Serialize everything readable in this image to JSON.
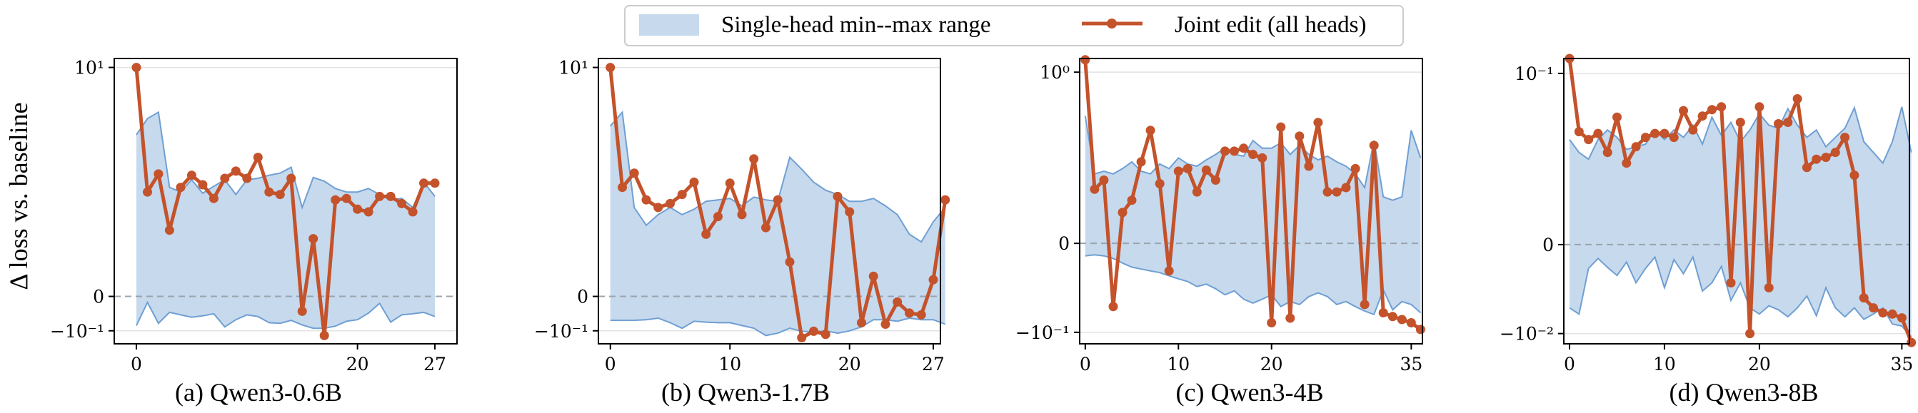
{
  "ylabel": "Δ loss vs. baseline",
  "legend": {
    "range_label": "Single-head min--max range",
    "joint_label": "Joint edit (all heads)"
  },
  "colors": {
    "range_fill": "#c6d9ed",
    "range_line": "#6f9fd3",
    "joint_line": "#c4522a",
    "zero_line": "#9aa4ad",
    "grid": "#e3e3e3"
  },
  "chart_data": [
    {
      "type": "line",
      "caption": "(a) Qwen3-0.6B",
      "linthresh": 0.1,
      "ylim": [
        -0.16,
        12
      ],
      "yticks": [
        {
          "v": 10,
          "label": "10¹"
        },
        {
          "v": 0,
          "label": "0"
        },
        {
          "v": -0.1,
          "label": "−10⁻¹"
        }
      ],
      "xticks": [
        0,
        20,
        27
      ],
      "x_max": 27,
      "series": [
        {
          "name": "Joint edit (all heads)",
          "values": [
            10,
            0.72,
            1.08,
            0.28,
            0.8,
            1.05,
            0.85,
            0.62,
            0.98,
            1.15,
            0.98,
            1.55,
            0.72,
            0.68,
            0.98,
            -0.035,
            0.22,
            -0.12,
            0.6,
            0.62,
            0.48,
            0.45,
            0.65,
            0.65,
            0.55,
            0.45,
            0.88,
            0.88
          ]
        },
        {
          "name": "max",
          "values": [
            2.5,
            3.5,
            4.0,
            0.8,
            0.72,
            0.95,
            0.7,
            0.82,
            0.95,
            0.68,
            0.95,
            0.98,
            1.05,
            1.1,
            1.25,
            0.5,
            1.0,
            0.92,
            0.78,
            0.72,
            0.72,
            0.78,
            0.68,
            0.6,
            0.62,
            0.5,
            0.9,
            0.65
          ]
        },
        {
          "name": "min",
          "values": [
            -0.08,
            -0.013,
            -0.072,
            -0.038,
            -0.045,
            -0.052,
            -0.048,
            -0.042,
            -0.085,
            -0.06,
            -0.045,
            -0.05,
            -0.07,
            -0.072,
            -0.062,
            -0.078,
            -0.09,
            -0.09,
            -0.082,
            -0.065,
            -0.06,
            -0.04,
            -0.015,
            -0.068,
            -0.045,
            -0.042,
            -0.038,
            -0.05
          ]
        }
      ]
    },
    {
      "type": "line",
      "caption": "(b) Qwen3-1.7B",
      "linthresh": 0.1,
      "ylim": [
        -0.16,
        12
      ],
      "yticks": [
        {
          "v": 10,
          "label": "10¹"
        },
        {
          "v": 0,
          "label": "0"
        },
        {
          "v": -0.1,
          "label": "−10⁻¹"
        }
      ],
      "xticks": [
        0,
        10,
        20,
        27
      ],
      "x_max": 27,
      "series": [
        {
          "name": "Joint edit (all heads)",
          "values": [
            10,
            0.8,
            1.1,
            0.6,
            0.5,
            0.55,
            0.68,
            0.9,
            0.25,
            0.4,
            0.88,
            0.42,
            1.5,
            0.3,
            0.6,
            0.1,
            -0.13,
            -0.102,
            -0.115,
            0.65,
            0.45,
            -0.07,
            0.05,
            -0.075,
            -0.012,
            -0.04,
            -0.045,
            0.04,
            0.6
          ]
        },
        {
          "name": "max",
          "values": [
            3.0,
            4.0,
            0.5,
            0.32,
            0.42,
            0.5,
            0.42,
            0.48,
            0.58,
            0.6,
            0.62,
            0.52,
            0.64,
            0.6,
            0.58,
            1.55,
            1.2,
            0.9,
            0.75,
            0.68,
            0.58,
            0.58,
            0.62,
            0.52,
            0.42,
            0.25,
            0.2,
            0.35,
            0.5
          ]
        },
        {
          "name": "min",
          "values": [
            -0.062,
            -0.062,
            -0.062,
            -0.06,
            -0.055,
            -0.07,
            -0.09,
            -0.065,
            -0.068,
            -0.07,
            -0.07,
            -0.08,
            -0.09,
            -0.12,
            -0.11,
            -0.09,
            -0.102,
            -0.105,
            -0.1,
            -0.11,
            -0.1,
            -0.085,
            -0.06,
            -0.06,
            -0.065,
            -0.055,
            -0.06,
            -0.06,
            -0.075
          ]
        }
      ]
    },
    {
      "type": "line",
      "caption": "(c) Qwen3-4B",
      "linthresh": 0.01,
      "ylim": [
        -0.14,
        1.45
      ],
      "yticks": [
        {
          "v": 1,
          "label": "10⁰"
        },
        {
          "v": 0,
          "label": "0"
        },
        {
          "v": -0.1,
          "label": "−10⁻¹"
        }
      ],
      "xticks": [
        0,
        10,
        20,
        35
      ],
      "x_max": 35,
      "series": [
        {
          "name": "Joint edit (all heads)",
          "values": [
            1.4,
            0.033,
            0.045,
            -0.045,
            0.013,
            0.022,
            0.08,
            0.2,
            0.04,
            -0.011,
            0.06,
            0.065,
            0.03,
            0.062,
            0.045,
            0.11,
            0.11,
            0.12,
            0.1,
            0.09,
            -0.075,
            0.22,
            -0.065,
            0.17,
            0.07,
            0.25,
            0.03,
            0.03,
            0.035,
            0.065,
            -0.042,
            0.13,
            -0.055,
            -0.062,
            -0.068,
            -0.075,
            -0.092
          ]
        },
        {
          "name": "max",
          "values": [
            0.3,
            0.055,
            0.06,
            0.055,
            0.065,
            0.08,
            0.06,
            0.055,
            0.075,
            0.065,
            0.09,
            0.075,
            0.07,
            0.085,
            0.1,
            0.12,
            0.1,
            0.095,
            0.15,
            0.12,
            0.12,
            0.14,
            0.1,
            0.13,
            0.1,
            0.085,
            0.095,
            0.08,
            0.07,
            0.055,
            0.035,
            0.15,
            0.025,
            0.022,
            0.025,
            0.2,
            0.09
          ]
        },
        {
          "name": "min",
          "values": [
            -0.004,
            -0.0036,
            -0.004,
            -0.005,
            -0.007,
            -0.009,
            -0.01,
            -0.011,
            -0.012,
            -0.014,
            -0.016,
            -0.018,
            -0.022,
            -0.02,
            -0.024,
            -0.03,
            -0.026,
            -0.035,
            -0.04,
            -0.035,
            -0.03,
            -0.045,
            -0.038,
            -0.042,
            -0.032,
            -0.028,
            -0.032,
            -0.042,
            -0.038,
            -0.045,
            -0.052,
            -0.058,
            -0.025,
            -0.05,
            -0.038,
            -0.042,
            -0.055
          ]
        }
      ]
    },
    {
      "type": "line",
      "caption": "(d) Qwen3-8B",
      "linthresh": 0.001,
      "ylim": [
        -0.0135,
        0.15
      ],
      "yticks": [
        {
          "v": 0.1,
          "label": "10⁻¹"
        },
        {
          "v": 0,
          "label": "0"
        },
        {
          "v": -0.01,
          "label": "−10⁻²"
        }
      ],
      "xticks": [
        0,
        10,
        20,
        35
      ],
      "x_max": 35,
      "series": [
        {
          "name": "Joint edit (all heads)",
          "values": [
            0.15,
            0.02,
            0.016,
            0.019,
            0.011,
            0.03,
            0.008,
            0.013,
            0.017,
            0.019,
            0.019,
            0.017,
            0.036,
            0.021,
            0.031,
            0.037,
            0.04,
            -0.0018,
            0.026,
            -0.01,
            0.04,
            -0.0022,
            0.025,
            0.026,
            0.05,
            0.007,
            0.009,
            0.0095,
            0.011,
            0.017,
            0.0055,
            -0.0032,
            -0.0045,
            -0.0053,
            -0.0055,
            -0.0062,
            -0.013
          ]
        },
        {
          "name": "max",
          "values": [
            0.016,
            0.011,
            0.009,
            0.016,
            0.021,
            0.017,
            0.012,
            0.013,
            0.014,
            0.021,
            0.016,
            0.021,
            0.017,
            0.024,
            0.014,
            0.03,
            0.018,
            0.026,
            0.015,
            0.021,
            0.033,
            0.024,
            0.022,
            0.038,
            0.024,
            0.017,
            0.021,
            0.013,
            0.017,
            0.022,
            0.039,
            0.015,
            0.011,
            0.008,
            0.015,
            0.04,
            0.011
          ]
        },
        {
          "name": "min",
          "values": [
            -0.0045,
            -0.0055,
            -0.0009,
            -0.00045,
            -0.00085,
            -0.0013,
            -0.0006,
            -0.0018,
            -0.0009,
            -0.0004,
            -0.0022,
            -0.0005,
            -0.0012,
            -0.0004,
            -0.0025,
            -0.0018,
            -0.0008,
            -0.0035,
            -0.0018,
            -0.0045,
            -0.0055,
            -0.0042,
            -0.0048,
            -0.006,
            -0.0045,
            -0.003,
            -0.0058,
            -0.0022,
            -0.0045,
            -0.006,
            -0.0045,
            -0.0065,
            -0.0055,
            -0.0045,
            -0.0075,
            -0.008,
            -0.011
          ]
        }
      ]
    }
  ]
}
